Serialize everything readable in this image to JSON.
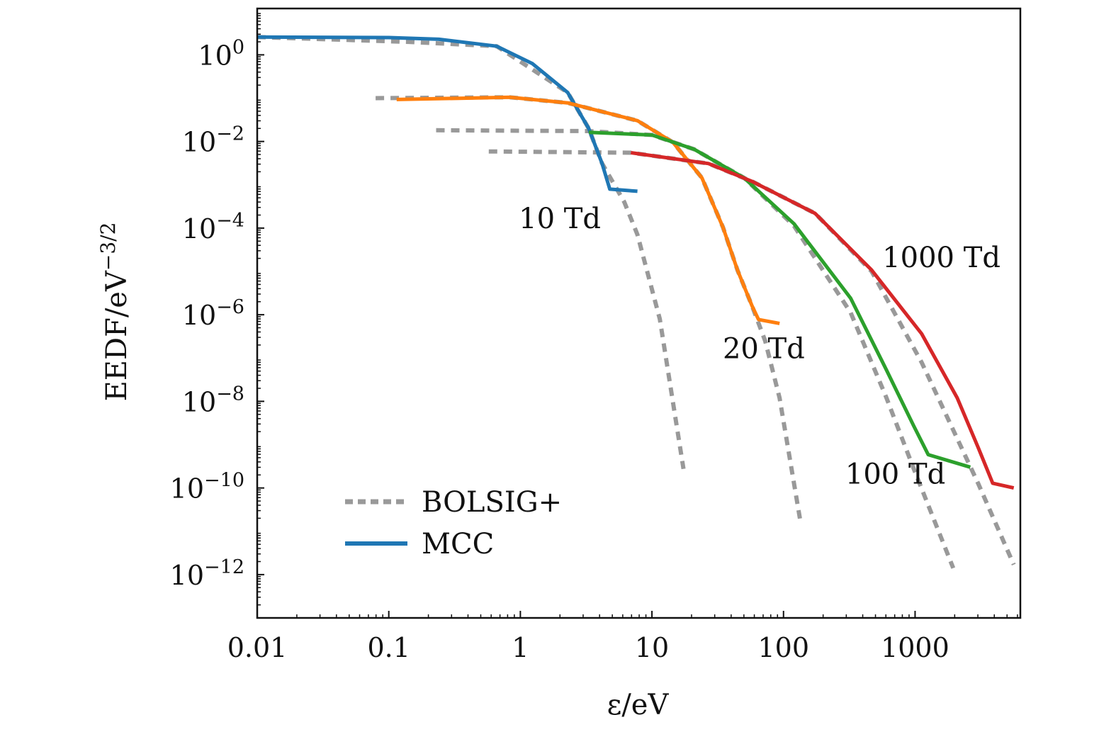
{
  "chart_data": {
    "type": "line",
    "title": "",
    "xlabel": "ε/eV",
    "ylabel_base": "EEDF/eV",
    "ylabel_sup": "−3/2",
    "xscale": "log",
    "yscale": "log",
    "xlim_log10": [
      -2,
      3.8
    ],
    "ylim_log10": [
      -13,
      1.07
    ],
    "x_ticks": [
      {
        "label": "0.01",
        "log10": -2
      },
      {
        "label": "0.1",
        "log10": -1
      },
      {
        "label": "1",
        "log10": 0
      },
      {
        "label": "10",
        "log10": 1
      },
      {
        "label": "100",
        "log10": 2
      },
      {
        "label": "1000",
        "log10": 3
      }
    ],
    "y_ticks": [
      {
        "base": "10",
        "exp": "0",
        "log10": 0
      },
      {
        "base": "10",
        "exp": "−2",
        "log10": -2
      },
      {
        "base": "10",
        "exp": "−4",
        "log10": -4
      },
      {
        "base": "10",
        "exp": "−6",
        "log10": -6
      },
      {
        "base": "10",
        "exp": "−8",
        "log10": -8
      },
      {
        "base": "10",
        "exp": "−10",
        "log10": -10
      },
      {
        "base": "10",
        "exp": "−12",
        "log10": -12
      }
    ],
    "legend": {
      "position": "bottom-left",
      "entries": [
        {
          "label": "BOLSIG+",
          "style": "dashed",
          "color": "#999999"
        },
        {
          "label": "MCC",
          "style": "solid",
          "color": "#1f77b4"
        }
      ]
    },
    "series": [
      {
        "name": "BOLSIG+ 10 Td",
        "method": "BOLSIG+",
        "color": "#999999",
        "x_log10": [
          -2,
          -0.85,
          -0.18,
          0.36,
          0.52,
          0.62,
          0.79,
          0.89,
          1.06,
          1.24
        ],
        "y_log10": [
          0.41,
          0.3,
          0.2,
          -0.87,
          -1.7,
          -2.5,
          -3.4,
          -4.15,
          -6.1,
          -9.56
        ]
      },
      {
        "name": "BOLSIG+ 20 Td",
        "method": "BOLSIG+",
        "color": "#999999",
        "x_log10": [
          -1.1,
          -0.08,
          0.36,
          0.89,
          1.16,
          1.38,
          1.54,
          1.65,
          1.76,
          1.86,
          1.97,
          2.13
        ],
        "y_log10": [
          -1.0,
          -0.98,
          -1.11,
          -1.52,
          -2.02,
          -2.84,
          -3.98,
          -4.97,
          -5.79,
          -6.6,
          -7.92,
          -10.8
        ]
      },
      {
        "name": "BOLSIG+ 100 Td",
        "method": "BOLSIG+",
        "color": "#999999",
        "x_log10": [
          -0.64,
          0.52,
          1.0,
          1.32,
          1.7,
          2.08,
          2.51,
          2.78,
          2.99,
          3.29
        ],
        "y_log10": [
          -1.74,
          -1.76,
          -1.85,
          -2.18,
          -2.84,
          -3.95,
          -5.95,
          -7.9,
          -9.56,
          -11.85
        ]
      },
      {
        "name": "BOLSIG+ 1000 Td",
        "method": "BOLSIG+",
        "color": "#999999",
        "x_log10": [
          -0.24,
          0.84,
          1.43,
          1.76,
          2.24,
          2.67,
          3.05,
          3.48,
          3.75
        ],
        "y_log10": [
          -2.23,
          -2.26,
          -2.51,
          -2.92,
          -3.66,
          -5.0,
          -7.1,
          -9.9,
          -11.77
        ]
      },
      {
        "name": "MCC 10 Td",
        "method": "MCC",
        "color": "#1f77b4",
        "x_log10": [
          -2,
          -1.0,
          -0.62,
          -0.18,
          0.09,
          0.36,
          0.52,
          0.62,
          0.68,
          0.89
        ],
        "y_log10": [
          0.41,
          0.4,
          0.36,
          0.2,
          -0.2,
          -0.87,
          -1.7,
          -2.5,
          -3.1,
          -3.15
        ]
      },
      {
        "name": "MCC 20 Td",
        "method": "MCC",
        "color": "#ff7f0e",
        "x_log10": [
          -0.94,
          -0.08,
          0.36,
          0.89,
          1.16,
          1.38,
          1.54,
          1.65,
          1.76,
          1.81,
          1.97
        ],
        "y_log10": [
          -1.03,
          -0.98,
          -1.11,
          -1.52,
          -2.02,
          -2.84,
          -3.98,
          -4.97,
          -5.79,
          -6.11,
          -6.2
        ]
      },
      {
        "name": "MCC 100 Td",
        "method": "MCC",
        "color": "#2ca02c",
        "x_log10": [
          0.52,
          1.0,
          1.32,
          1.7,
          2.08,
          2.51,
          2.78,
          2.99,
          3.1,
          3.42
        ],
        "y_log10": [
          -1.79,
          -1.85,
          -2.18,
          -2.84,
          -3.9,
          -5.62,
          -7.26,
          -8.57,
          -9.23,
          -9.52
        ]
      },
      {
        "name": "MCC 1000 Td",
        "method": "MCC",
        "color": "#d62728",
        "x_log10": [
          0.84,
          1.43,
          1.76,
          2.24,
          2.67,
          3.05,
          3.32,
          3.48,
          3.59,
          3.75
        ],
        "y_log10": [
          -2.26,
          -2.51,
          -2.92,
          -3.66,
          -4.97,
          -6.44,
          -7.92,
          -9.07,
          -9.89,
          -10.0
        ]
      }
    ],
    "annotations": [
      {
        "text": "10 Td",
        "x_log10": 0.3,
        "y_log10": -4.0
      },
      {
        "text": "20 Td",
        "x_log10": 1.85,
        "y_log10": -7.0
      },
      {
        "text": "100 Td",
        "x_log10": 2.85,
        "y_log10": -9.9
      },
      {
        "text": "1000 Td",
        "x_log10": 3.2,
        "y_log10": -4.9
      }
    ]
  }
}
